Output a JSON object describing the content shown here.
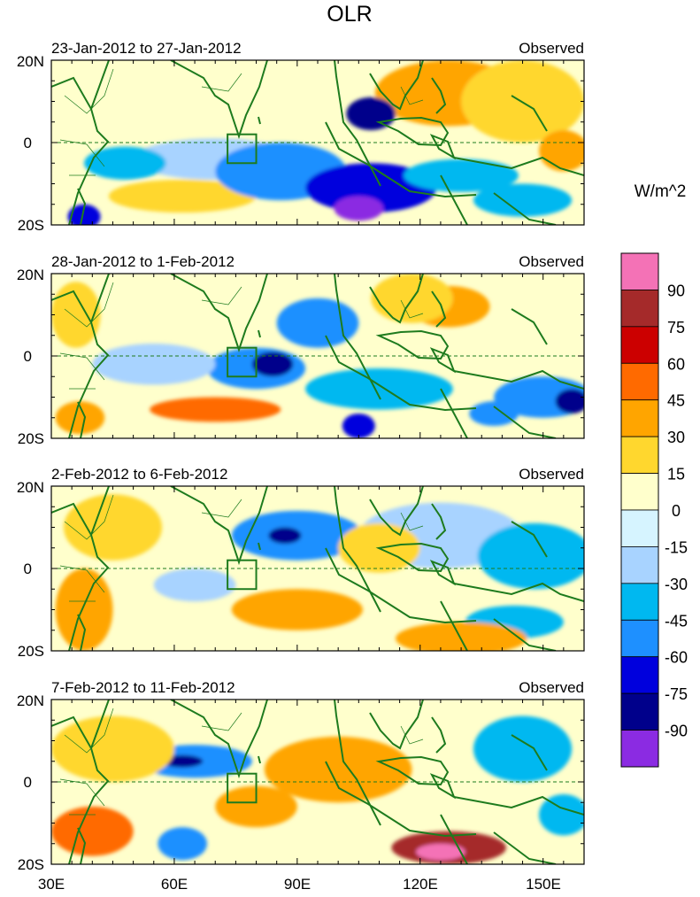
{
  "title": "OLR",
  "units": "W/m^2",
  "panels": [
    {
      "period": "23-Jan-2012 to 27-Jan-2012",
      "label": "Observed"
    },
    {
      "period": "28-Jan-2012 to 1-Feb-2012",
      "label": "Observed"
    },
    {
      "period": "2-Feb-2012 to 6-Feb-2012",
      "label": "Observed"
    },
    {
      "period": "7-Feb-2012 to 11-Feb-2012",
      "label": "Observed"
    }
  ],
  "lat_labels": [
    "20N",
    "0",
    "20S"
  ],
  "lon_labels": [
    "30E",
    "60E",
    "90E",
    "120E",
    "150E"
  ],
  "colorbar": {
    "labels": [
      "90",
      "75",
      "60",
      "45",
      "30",
      "15",
      "0",
      "-15",
      "-30",
      "-45",
      "-60",
      "-75",
      "-90"
    ],
    "colors": [
      "#f472b6",
      "#a52a2a",
      "#cc0000",
      "#ff6a00",
      "#ffa500",
      "#ffd72e",
      "#ffffcc",
      "#d6f4ff",
      "#a8d3ff",
      "#00b8f0",
      "#1e90ff",
      "#0000dd",
      "#00008b",
      "#8b2be2"
    ]
  },
  "chart_data": {
    "type": "heatmap",
    "title": "OLR",
    "units": "W/m^2",
    "xlim": [
      30,
      160
    ],
    "ylim": [
      -20,
      20
    ],
    "x_ticks": [
      30,
      60,
      90,
      120,
      150
    ],
    "y_ticks": [
      20,
      0,
      -20
    ],
    "levels": [
      -90,
      -75,
      -60,
      -45,
      -30,
      -15,
      0,
      15,
      30,
      45,
      60,
      75,
      90
    ],
    "box_region": {
      "lon": [
        73,
        80
      ],
      "lat": [
        -5,
        2
      ]
    },
    "panels": [
      {
        "period": "23-Jan-2012 to 27-Jan-2012",
        "label": "Observed",
        "features": [
          {
            "lon": 52,
            "lat": 16,
            "value": 5,
            "rx": 40,
            "ry": 6
          },
          {
            "lon": 127,
            "lat": 12,
            "value": 30,
            "rx": 18,
            "ry": 8
          },
          {
            "lon": 145,
            "lat": 10,
            "value": 25,
            "rx": 15,
            "ry": 10
          },
          {
            "lon": 62,
            "lat": -13,
            "value": 25,
            "rx": 18,
            "ry": 4
          },
          {
            "lon": 155,
            "lat": -2,
            "value": 40,
            "rx": 6,
            "ry": 5
          },
          {
            "lon": 70,
            "lat": -4,
            "value": -30,
            "rx": 20,
            "ry": 5
          },
          {
            "lon": 48,
            "lat": -5,
            "value": -35,
            "rx": 10,
            "ry": 4
          },
          {
            "lon": 86,
            "lat": -7,
            "value": -60,
            "rx": 16,
            "ry": 7
          },
          {
            "lon": 108,
            "lat": -11,
            "value": -75,
            "rx": 16,
            "ry": 6
          },
          {
            "lon": 105,
            "lat": -16,
            "value": -95,
            "rx": 6,
            "ry": 3
          },
          {
            "lon": 108,
            "lat": 7,
            "value": -80,
            "rx": 6,
            "ry": 4
          },
          {
            "lon": 130,
            "lat": -8,
            "value": -45,
            "rx": 14,
            "ry": 4
          },
          {
            "lon": 145,
            "lat": -14,
            "value": -40,
            "rx": 12,
            "ry": 4
          },
          {
            "lon": 38,
            "lat": -18,
            "value": -75,
            "rx": 4,
            "ry": 3
          }
        ]
      },
      {
        "period": "28-Jan-2012 to 1-Feb-2012",
        "label": "Observed",
        "features": [
          {
            "lon": 127,
            "lat": 12,
            "value": 40,
            "rx": 10,
            "ry": 5
          },
          {
            "lon": 118,
            "lat": 14,
            "value": 20,
            "rx": 10,
            "ry": 6
          },
          {
            "lon": 70,
            "lat": -13,
            "value": 45,
            "rx": 16,
            "ry": 3
          },
          {
            "lon": 37,
            "lat": -15,
            "value": 30,
            "rx": 6,
            "ry": 4
          },
          {
            "lon": 36,
            "lat": 10,
            "value": 15,
            "rx": 6,
            "ry": 8
          },
          {
            "lon": 80,
            "lat": -3,
            "value": -55,
            "rx": 12,
            "ry": 5
          },
          {
            "lon": 84,
            "lat": -2,
            "value": -80,
            "rx": 5,
            "ry": 3
          },
          {
            "lon": 95,
            "lat": 8,
            "value": -55,
            "rx": 10,
            "ry": 6
          },
          {
            "lon": 110,
            "lat": -8,
            "value": -40,
            "rx": 18,
            "ry": 5
          },
          {
            "lon": 105,
            "lat": -17,
            "value": -70,
            "rx": 4,
            "ry": 3
          },
          {
            "lon": 150,
            "lat": -10,
            "value": -60,
            "rx": 12,
            "ry": 5
          },
          {
            "lon": 157,
            "lat": -11,
            "value": -80,
            "rx": 4,
            "ry": 3
          },
          {
            "lon": 55,
            "lat": -2,
            "value": -25,
            "rx": 15,
            "ry": 5
          },
          {
            "lon": 138,
            "lat": -14,
            "value": -50,
            "rx": 6,
            "ry": 3
          }
        ]
      },
      {
        "period": "2-Feb-2012 to 6-Feb-2012",
        "label": "Observed",
        "features": [
          {
            "lon": 90,
            "lat": 8,
            "value": -50,
            "rx": 16,
            "ry": 6
          },
          {
            "lon": 87,
            "lat": 8,
            "value": -80,
            "rx": 4,
            "ry": 2
          },
          {
            "lon": 125,
            "lat": 8,
            "value": -30,
            "rx": 20,
            "ry": 8
          },
          {
            "lon": 148,
            "lat": 3,
            "value": -40,
            "rx": 14,
            "ry": 8
          },
          {
            "lon": 143,
            "lat": -13,
            "value": -40,
            "rx": 12,
            "ry": 4
          },
          {
            "lon": 65,
            "lat": -4,
            "value": -30,
            "rx": 10,
            "ry": 4
          },
          {
            "lon": 90,
            "lat": -10,
            "value": 30,
            "rx": 16,
            "ry": 5
          },
          {
            "lon": 130,
            "lat": -17,
            "value": 40,
            "rx": 16,
            "ry": 4
          },
          {
            "lon": 38,
            "lat": -10,
            "value": 40,
            "rx": 7,
            "ry": 10
          },
          {
            "lon": 45,
            "lat": 10,
            "value": 20,
            "rx": 12,
            "ry": 8
          },
          {
            "lon": 110,
            "lat": 5,
            "value": 15,
            "rx": 10,
            "ry": 6
          }
        ]
      },
      {
        "period": "7-Feb-2012 to 11-Feb-2012",
        "label": "Observed",
        "features": [
          {
            "lon": 65,
            "lat": 5,
            "value": -50,
            "rx": 14,
            "ry": 4
          },
          {
            "lon": 62,
            "lat": 5,
            "value": -80,
            "rx": 5,
            "ry": 1.5
          },
          {
            "lon": 62,
            "lat": -15,
            "value": -60,
            "rx": 6,
            "ry": 4
          },
          {
            "lon": 145,
            "lat": 8,
            "value": -35,
            "rx": 12,
            "ry": 8
          },
          {
            "lon": 100,
            "lat": 3,
            "value": 40,
            "rx": 18,
            "ry": 8
          },
          {
            "lon": 127,
            "lat": -16,
            "value": 75,
            "rx": 14,
            "ry": 4
          },
          {
            "lon": 125,
            "lat": -17,
            "value": 90,
            "rx": 6,
            "ry": 2
          },
          {
            "lon": 40,
            "lat": -12,
            "value": 50,
            "rx": 10,
            "ry": 6
          },
          {
            "lon": 45,
            "lat": 8,
            "value": 25,
            "rx": 15,
            "ry": 8
          },
          {
            "lon": 80,
            "lat": -6,
            "value": 35,
            "rx": 10,
            "ry": 5
          },
          {
            "lon": 155,
            "lat": -8,
            "value": -40,
            "rx": 6,
            "ry": 5
          }
        ]
      }
    ]
  }
}
